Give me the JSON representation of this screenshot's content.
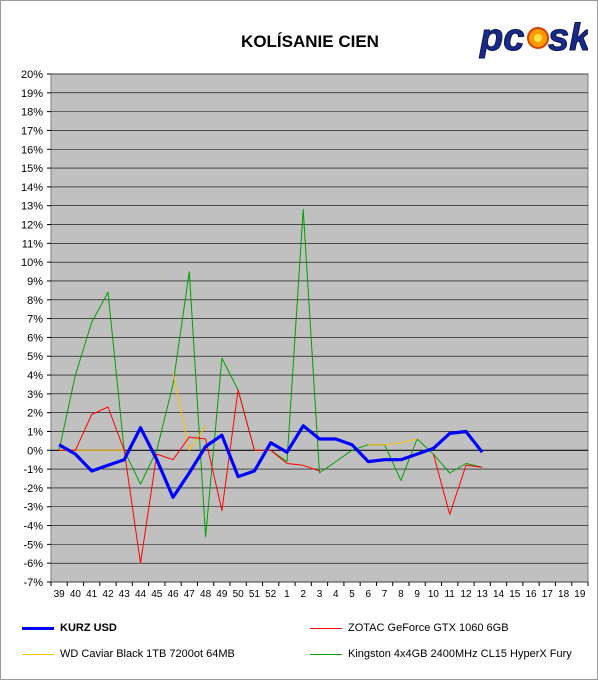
{
  "title": "KOLÍSANIE CIEN",
  "logo_text": "pcosk",
  "chart_data": {
    "type": "line",
    "title": "KOLÍSANIE CIEN",
    "categories": [
      "39",
      "40",
      "41",
      "42",
      "43",
      "44",
      "45",
      "46",
      "47",
      "48",
      "49",
      "50",
      "51",
      "52",
      "1",
      "2",
      "3",
      "4",
      "5",
      "6",
      "7",
      "8",
      "9",
      "10",
      "11",
      "12",
      "13",
      "14",
      "15",
      "16",
      "17",
      "18",
      "19"
    ],
    "y_tick_labels": [
      "20%",
      "19%",
      "18%",
      "17%",
      "16%",
      "15%",
      "14%",
      "13%",
      "12%",
      "11%",
      "10%",
      "9%",
      "8%",
      "7%",
      "6%",
      "5%",
      "4%",
      "3%",
      "2%",
      "1%",
      "0%",
      "-1%",
      "-2%",
      "-3%",
      "-4%",
      "-5%",
      "-6%",
      "-7%"
    ],
    "ylim": [
      -7,
      20
    ],
    "grid": true,
    "legend_position": "bottom",
    "series": [
      {
        "name": "KURZ USD",
        "color": "#0000ff",
        "values": [
          0.3,
          -0.2,
          -1.1,
          -0.8,
          -0.5,
          1.2,
          -0.5,
          -2.5,
          -1.2,
          0.2,
          0.8,
          -1.4,
          -1.1,
          0.4,
          -0.1,
          1.3,
          0.6,
          0.6,
          0.3,
          -0.6,
          -0.5,
          -0.5,
          -0.2,
          0.1,
          0.9,
          1.0,
          -0.1,
          null,
          null,
          null,
          null,
          null,
          null
        ]
      },
      {
        "name": "ZOTAC GeForce GTX 1060 6GB",
        "color": "#ff0000",
        "values": [
          0.0,
          0.0,
          1.9,
          2.3,
          0.0,
          -6.0,
          -0.2,
          -0.5,
          0.7,
          0.6,
          -3.2,
          3.2,
          0.0,
          0.0,
          -0.7,
          -0.8,
          -1.1,
          null,
          null,
          null,
          null,
          null,
          null,
          -0.2,
          -3.4,
          -0.8,
          -0.9,
          null,
          null,
          null,
          null,
          null,
          null
        ]
      },
      {
        "name": "WD Caviar Black 1TB 7200ot 64MB",
        "color": "#ffc000",
        "values": [
          0.0,
          0.0,
          0.0,
          0.0,
          0.0,
          null,
          null,
          4.1,
          0.0,
          1.3,
          null,
          null,
          null,
          null,
          null,
          null,
          null,
          null,
          null,
          0.3,
          0.3,
          0.4,
          0.6,
          null,
          null,
          null,
          null,
          null,
          null,
          null,
          null,
          null,
          null
        ]
      },
      {
        "name": "Kingston 4x4GB 2400MHz CL15 HyperX Fury",
        "color": "#00a000",
        "values": [
          0.0,
          4.0,
          6.8,
          8.4,
          0.0,
          -1.8,
          0.0,
          3.5,
          9.5,
          -4.6,
          4.9,
          3.2,
          0.0,
          0.0,
          -0.6,
          12.8,
          -1.2,
          -0.6,
          0.0,
          0.3,
          0.3,
          -1.6,
          0.6,
          -0.2,
          -1.2,
          -0.7,
          -0.9,
          null,
          null,
          null,
          null,
          null,
          null
        ]
      }
    ]
  }
}
